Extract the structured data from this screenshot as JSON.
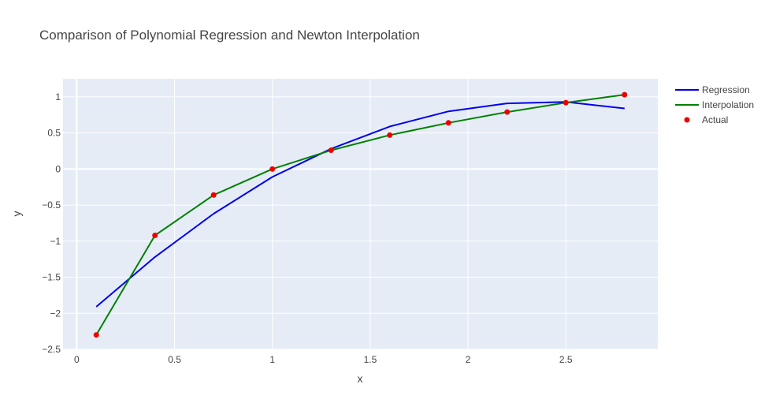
{
  "chart_data": {
    "type": "line",
    "title": "Comparison of Polynomial Regression and Newton Interpolation",
    "xlabel": "x",
    "ylabel": "y",
    "xlim": [
      -0.07,
      2.97
    ],
    "ylim": [
      -2.5,
      1.25
    ],
    "x_ticks": [
      0,
      0.5,
      1,
      1.5,
      2,
      2.5
    ],
    "x_tick_labels": [
      "0",
      "0.5",
      "1",
      "1.5",
      "2",
      "2.5"
    ],
    "y_ticks": [
      1,
      0.5,
      0,
      -0.5,
      -1,
      -1.5,
      -2,
      -2.5
    ],
    "y_tick_labels": [
      "1",
      "0.5",
      "0",
      "−0.5",
      "−1",
      "−1.5",
      "−2",
      "−2.5"
    ],
    "grid": true,
    "legend_position": "top-right",
    "x": [
      0.1,
      0.4,
      0.7,
      1.0,
      1.3,
      1.6,
      1.9,
      2.2,
      2.5,
      2.8
    ],
    "series": [
      {
        "name": "Regression",
        "mode": "lines",
        "color": "#0000ee",
        "values": [
          -1.91,
          -1.22,
          -0.62,
          -0.11,
          0.28,
          0.59,
          0.8,
          0.91,
          0.93,
          0.84
        ]
      },
      {
        "name": "Interpolation",
        "mode": "lines",
        "color": "#008000",
        "values": [
          -2.3,
          -0.92,
          -0.36,
          0.0,
          0.26,
          0.47,
          0.64,
          0.79,
          0.92,
          1.03
        ]
      },
      {
        "name": "Actual",
        "mode": "markers",
        "color": "#ee0000",
        "values": [
          -2.3,
          -0.92,
          -0.36,
          0.0,
          0.26,
          0.47,
          0.64,
          0.79,
          0.92,
          1.03
        ]
      }
    ]
  }
}
